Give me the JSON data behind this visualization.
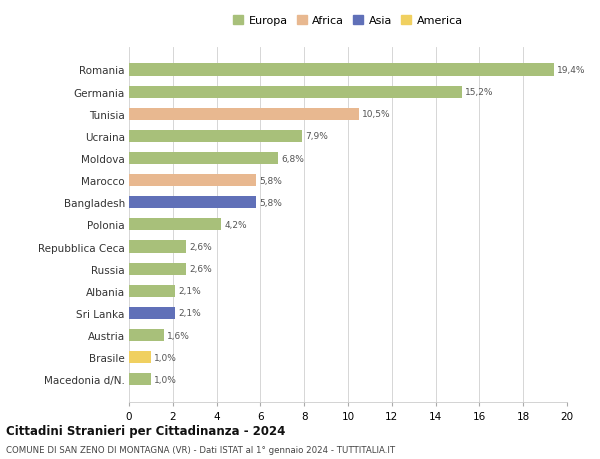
{
  "categories": [
    "Romania",
    "Germania",
    "Tunisia",
    "Ucraina",
    "Moldova",
    "Marocco",
    "Bangladesh",
    "Polonia",
    "Repubblica Ceca",
    "Russia",
    "Albania",
    "Sri Lanka",
    "Austria",
    "Brasile",
    "Macedonia d/N."
  ],
  "values": [
    19.4,
    15.2,
    10.5,
    7.9,
    6.8,
    5.8,
    5.8,
    4.2,
    2.6,
    2.6,
    2.1,
    2.1,
    1.6,
    1.0,
    1.0
  ],
  "labels": [
    "19,4%",
    "15,2%",
    "10,5%",
    "7,9%",
    "6,8%",
    "5,8%",
    "5,8%",
    "4,2%",
    "2,6%",
    "2,6%",
    "2,1%",
    "2,1%",
    "1,6%",
    "1,0%",
    "1,0%"
  ],
  "continents": [
    "Europa",
    "Europa",
    "Africa",
    "Europa",
    "Europa",
    "Africa",
    "Asia",
    "Europa",
    "Europa",
    "Europa",
    "Europa",
    "Asia",
    "Europa",
    "America",
    "Europa"
  ],
  "colors": {
    "Europa": "#a8c07a",
    "Africa": "#e8b890",
    "Asia": "#6070b8",
    "America": "#f0d060"
  },
  "legend_colors": {
    "Europa": "#a8c07a",
    "Africa": "#e8b890",
    "Asia": "#6070b8",
    "America": "#f0d060"
  },
  "title": "Cittadini Stranieri per Cittadinanza - 2024",
  "subtitle": "COMUNE DI SAN ZENO DI MONTAGNA (VR) - Dati ISTAT al 1° gennaio 2024 - TUTTITALIA.IT",
  "xlim": [
    0,
    20
  ],
  "xticks": [
    0,
    2,
    4,
    6,
    8,
    10,
    12,
    14,
    16,
    18,
    20
  ],
  "background_color": "#ffffff",
  "grid_color": "#d0d0d0"
}
